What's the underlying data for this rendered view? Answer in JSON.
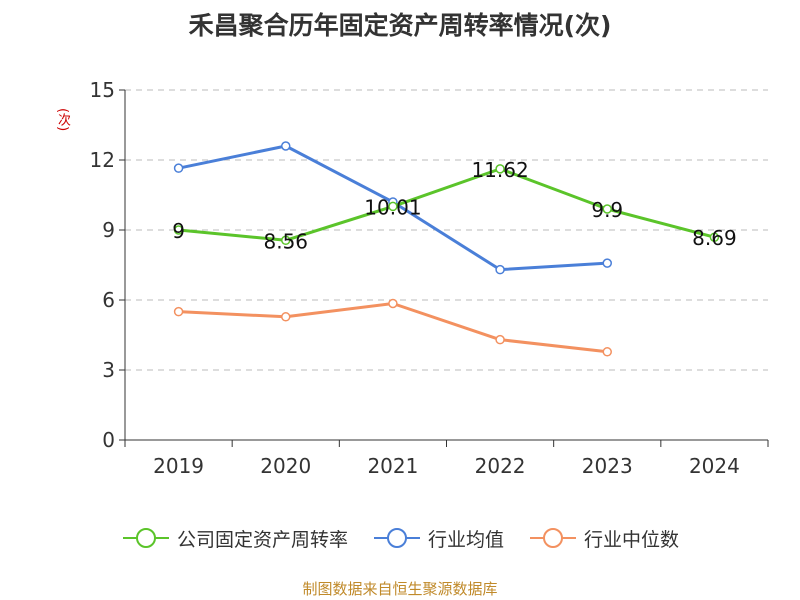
{
  "chart_data": {
    "type": "line",
    "title": "禾昌聚合历年固定资产周转率情况(次)",
    "y_unit": "(次)",
    "categories": [
      "2019",
      "2020",
      "2021",
      "2022",
      "2023",
      "2024"
    ],
    "y_ticks": [
      "0",
      "3",
      "6",
      "9",
      "12",
      "15"
    ],
    "ylim": [
      0,
      15
    ],
    "grid": true,
    "legend_position": "bottom",
    "series": [
      {
        "name": "公司固定资产周转率",
        "color": "#5bc42a",
        "values": [
          9,
          8.56,
          10.01,
          11.62,
          9.9,
          8.69
        ],
        "labels": [
          "9",
          "8.56",
          "10.01",
          "11.62",
          "9.9",
          "8.69"
        ]
      },
      {
        "name": "行业均值",
        "color": "#4a7fd8",
        "values": [
          11.65,
          12.6,
          10.2,
          7.3,
          7.58,
          null
        ],
        "labels": []
      },
      {
        "name": "行业中位数",
        "color": "#f39160",
        "values": [
          5.5,
          5.28,
          5.85,
          4.3,
          3.78,
          null
        ],
        "labels": []
      }
    ],
    "source": "制图数据来自恒生聚源数据库"
  }
}
